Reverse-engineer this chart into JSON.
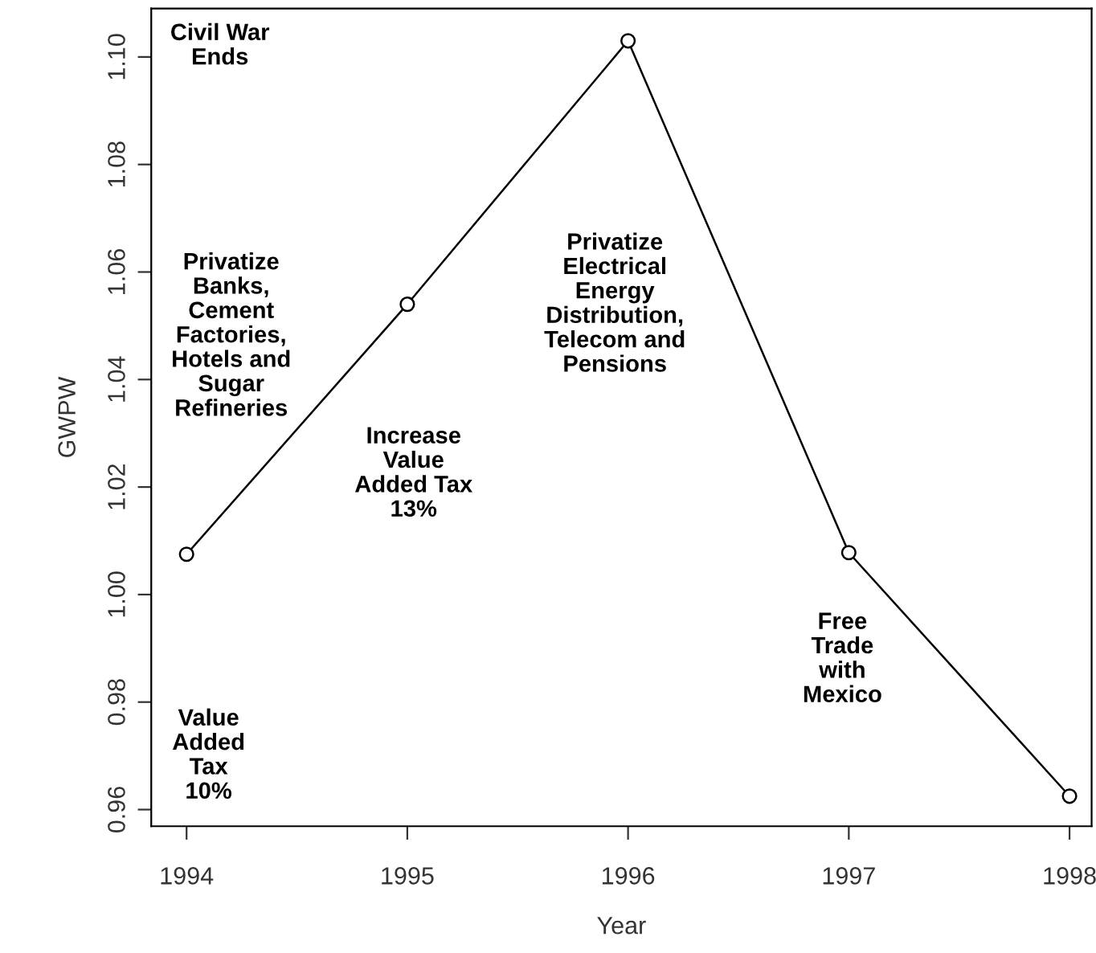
{
  "chart_data": {
    "type": "line",
    "xlabel": "Year",
    "ylabel": "GWPW",
    "x": [
      1994,
      1995,
      1996,
      1997,
      1998
    ],
    "series": [
      {
        "color": "#000000",
        "values": [
          1.0075,
          1.054,
          1.103,
          1.0078,
          0.9625
        ]
      }
    ],
    "marker": "circle",
    "line_style": "solid",
    "grid": false,
    "legend": false,
    "xlim": [
      1993.84,
      1998.1
    ],
    "ylim": [
      0.9569,
      1.109
    ],
    "xticks": [
      1994,
      1995,
      1996,
      1997,
      1998
    ],
    "yticks": [
      0.96,
      0.98,
      {
        "value": 1.0,
        "label": "1.00"
      },
      1.02,
      1.04,
      1.06,
      1.08,
      {
        "value": 1.1,
        "label": "1.10"
      }
    ],
    "annotations": [
      "Civil War\nEnds",
      "Privatize\nBanks,\nCement\nFactories,\nHotels and\nSugar\nRefineries",
      "Increase\nValue\nAdded Tax\n13%",
      "Value\nAdded\nTax\n10%",
      "Privatize\nElectrical\nEnergy\nDistribution,\nTelecom and\nPensions",
      "Free\nTrade\nwith\nMexico"
    ]
  }
}
